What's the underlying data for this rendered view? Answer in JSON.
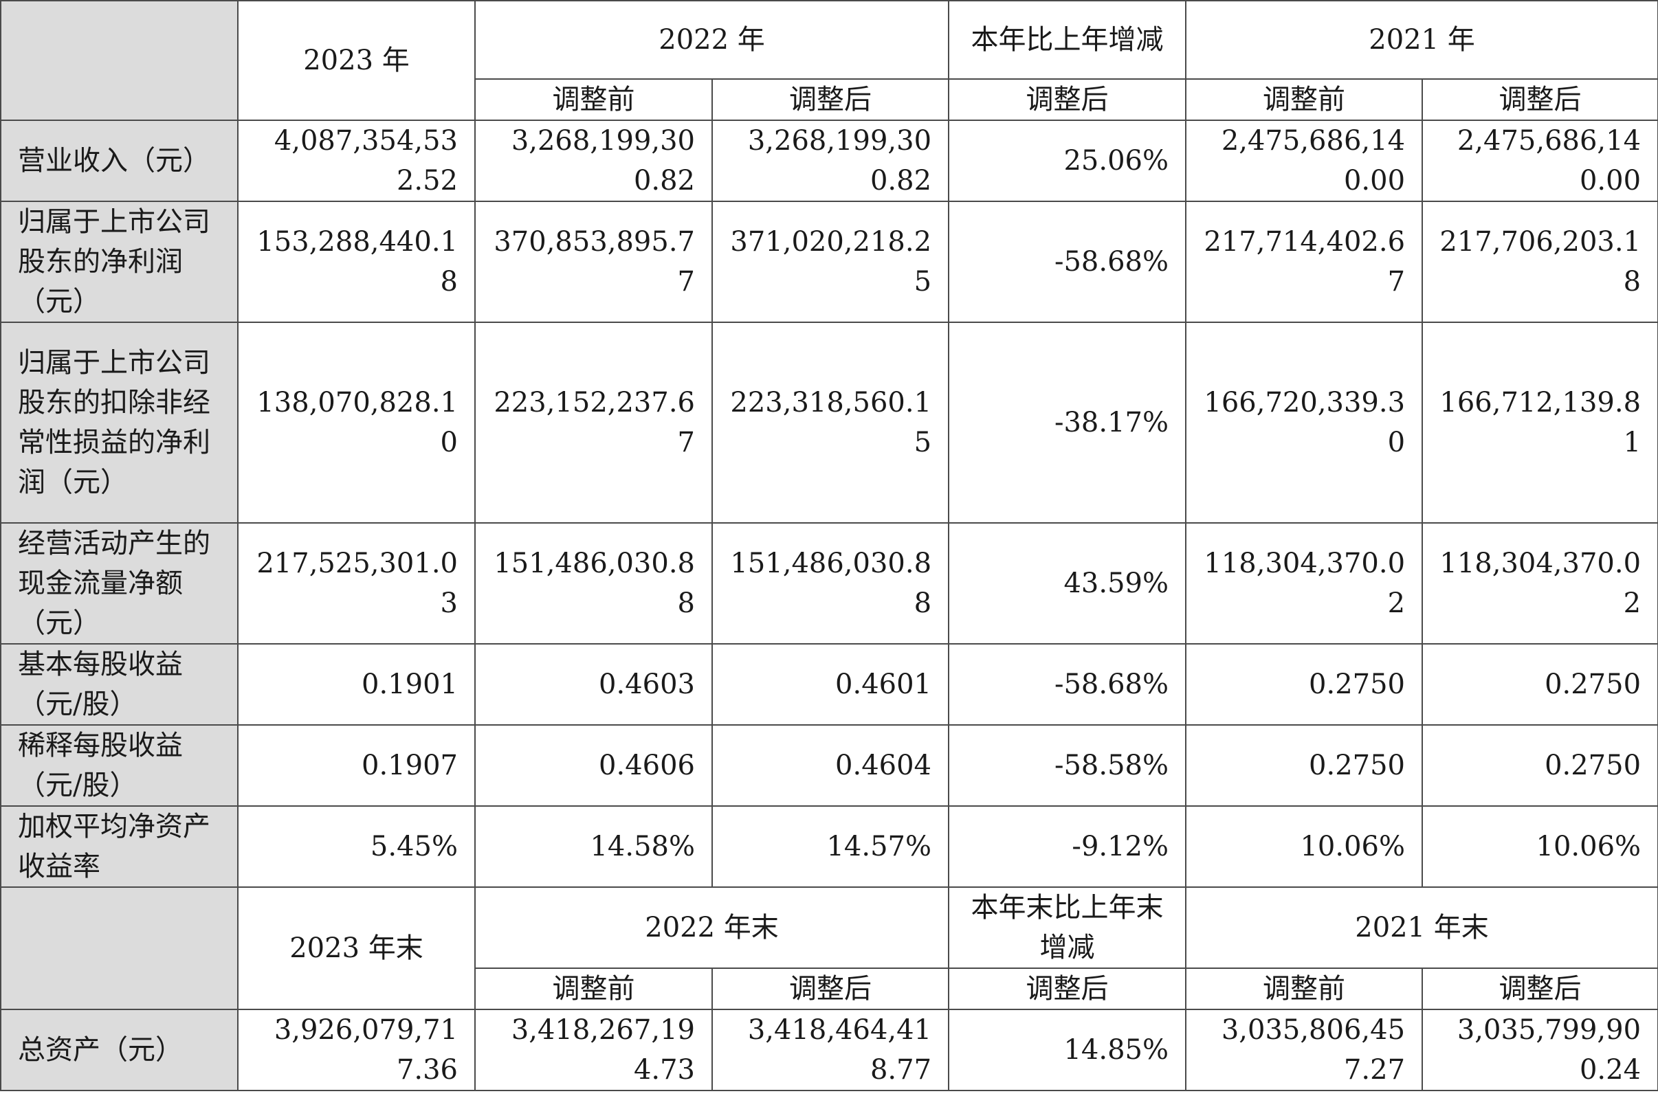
{
  "top_header": {
    "y2023": "2023 年",
    "y2022": "2022 年",
    "change": "本年比上年增减",
    "y2021": "2021 年",
    "before": "调整前",
    "after": "调整后",
    "change_after": "调整后",
    "before_2021": "调整前",
    "after_2021": "调整后"
  },
  "rows": [
    {
      "label": "营业收入（元）",
      "v2023": "4,087,354,532.52",
      "v2022_before": "3,268,199,300.82",
      "v2022_after": "3,268,199,300.82",
      "change": "25.06%",
      "v2021_before": "2,475,686,140.00",
      "v2021_after": "2,475,686,140.00"
    },
    {
      "label": "归属于上市公司股东的净利润（元）",
      "v2023": "153,288,440.18",
      "v2022_before": "370,853,895.77",
      "v2022_after": "371,020,218.25",
      "change": "-58.68%",
      "v2021_before": "217,714,402.67",
      "v2021_after": "217,706,203.18"
    },
    {
      "label": "归属于上市公司股东的扣除非经常性损益的净利润（元）",
      "v2023": "138,070,828.10",
      "v2022_before": "223,152,237.67",
      "v2022_after": "223,318,560.15",
      "change": "-38.17%",
      "v2021_before": "166,720,339.30",
      "v2021_after": "166,712,139.81"
    },
    {
      "label": "经营活动产生的现金流量净额（元）",
      "v2023": "217,525,301.03",
      "v2022_before": "151,486,030.88",
      "v2022_after": "151,486,030.88",
      "change": "43.59%",
      "v2021_before": "118,304,370.02",
      "v2021_after": "118,304,370.02"
    },
    {
      "label": "基本每股收益（元/股）",
      "v2023": "0.1901",
      "v2022_before": "0.4603",
      "v2022_after": "0.4601",
      "change": "-58.68%",
      "v2021_before": "0.2750",
      "v2021_after": "0.2750"
    },
    {
      "label": "稀释每股收益（元/股）",
      "v2023": "0.1907",
      "v2022_before": "0.4606",
      "v2022_after": "0.4604",
      "change": "-58.58%",
      "v2021_before": "0.2750",
      "v2021_after": "0.2750"
    },
    {
      "label": "加权平均净资产收益率",
      "v2023": "5.45%",
      "v2022_before": "14.58%",
      "v2022_after": "14.57%",
      "change": "-9.12%",
      "v2021_before": "10.06%",
      "v2021_after": "10.06%"
    }
  ],
  "bottom_header": {
    "y2023": "2023 年末",
    "y2022": "2022 年末",
    "change": "本年末比上年末增减",
    "y2021": "2021 年末",
    "before": "调整前",
    "after": "调整后",
    "change_after": "调整后",
    "before_2021": "调整前",
    "after_2021": "调整后"
  },
  "bottom_rows": [
    {
      "label": "总资产（元）",
      "v2023": "3,926,079,717.36",
      "v2022_before": "3,418,267,194.73",
      "v2022_after": "3,418,464,418.77",
      "change": "14.85%",
      "v2021_before": "3,035,806,457.27",
      "v2021_after": "3,035,799,900.24"
    }
  ]
}
